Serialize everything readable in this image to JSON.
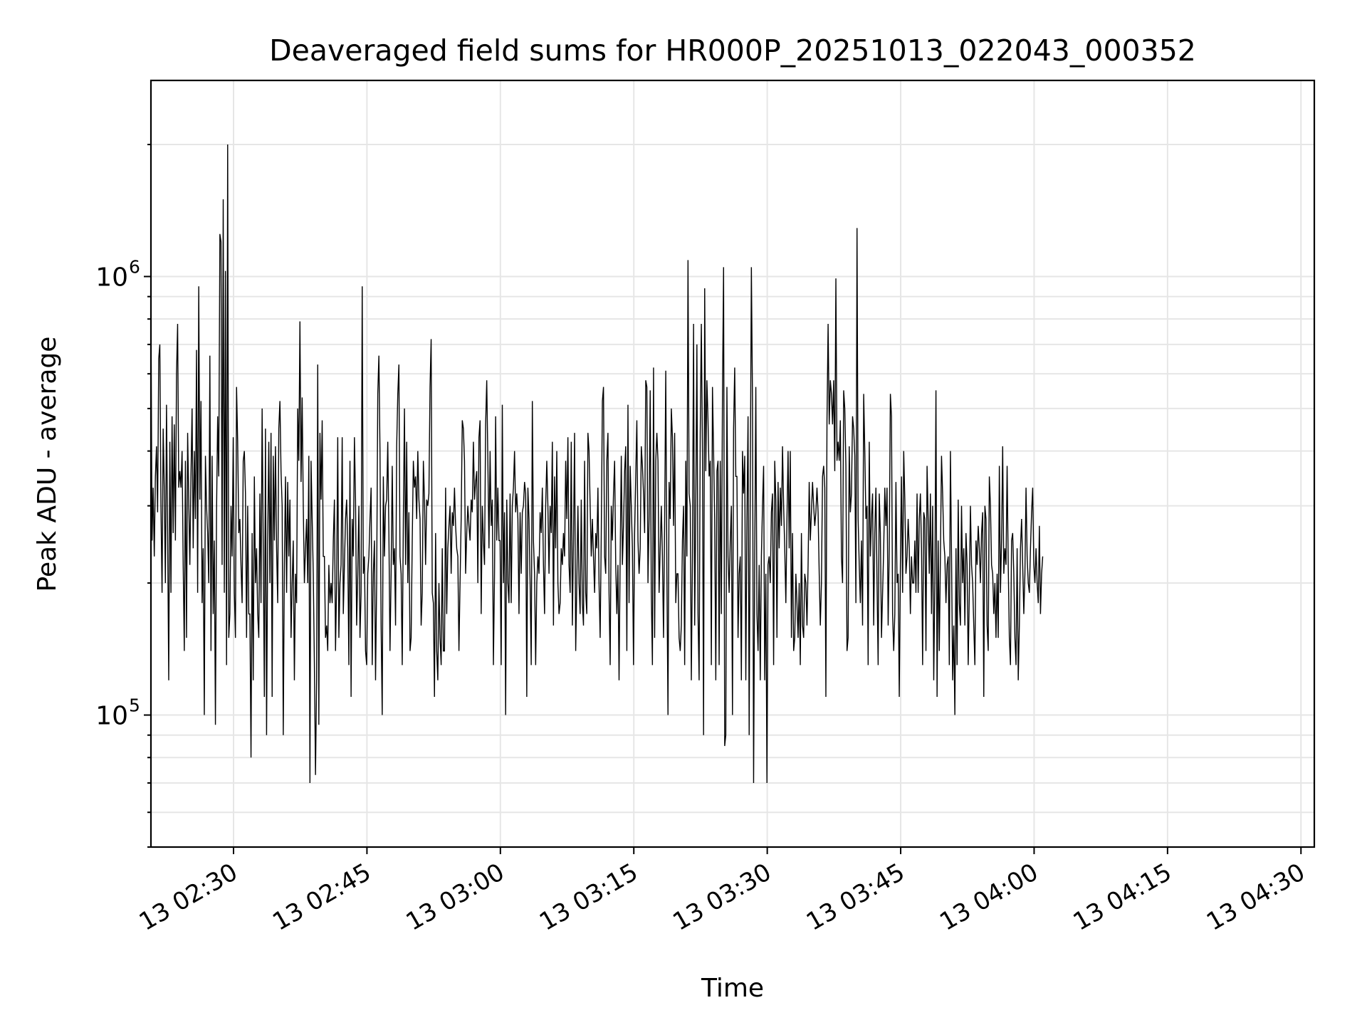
{
  "chart_data": {
    "type": "line",
    "title": "Deaveraged field sums for HR000P_20251013_022043_000352",
    "xlabel": "Time",
    "ylabel": "Peak ADU - average",
    "yscale": "log",
    "ylim": [
      50000,
      2800000
    ],
    "xlim": [
      "2025-10-13 02:20:43",
      "2025-10-13 04:31:30"
    ],
    "x_ticks": [
      "13 02:30",
      "13 02:45",
      "13 03:00",
      "13 03:15",
      "13 03:30",
      "13 03:45",
      "13 04:00",
      "13 04:15",
      "13 04:30"
    ],
    "y_ticks": [
      {
        "label": "10",
        "exponent": "5",
        "value": 100000
      },
      {
        "label": "10",
        "exponent": "6",
        "value": 1000000
      }
    ],
    "grid": true,
    "series": [
      {
        "name": "Peak ADU - average",
        "color": "#000000",
        "x_start": "2025-10-13 02:20:43",
        "x_step_seconds": 7.5,
        "values": [
          820000,
          250000,
          330000,
          230000,
          350000,
          410000,
          290000,
          650000,
          700000,
          300000,
          190000,
          450000,
          330000,
          200000,
          510000,
          260000,
          120000,
          420000,
          190000,
          480000,
          260000,
          460000,
          250000,
          600000,
          780000,
          330000,
          360000,
          330000,
          400000,
          220000,
          140000,
          380000,
          150000,
          440000,
          310000,
          220000,
          350000,
          500000,
          240000,
          400000,
          280000,
          680000,
          190000,
          950000,
          310000,
          520000,
          180000,
          240000,
          100000,
          390000,
          300000,
          260000,
          200000,
          660000,
          140000,
          390000,
          170000,
          250000,
          95000,
          290000,
          480000,
          350000,
          1250000,
          1200000,
          220000,
          1500000,
          190000,
          1030000,
          130000,
          2000000,
          150000,
          170000,
          300000,
          230000,
          430000,
          190000,
          150000,
          560000,
          420000,
          260000,
          280000,
          220000,
          180000,
          380000,
          400000,
          320000,
          150000,
          300000,
          170000,
          170000,
          80000,
          260000,
          120000,
          350000,
          200000,
          240000,
          170000,
          150000,
          320000,
          180000,
          500000,
          240000,
          110000,
          450000,
          90000,
          250000,
          420000,
          200000,
          440000,
          110000,
          390000,
          250000,
          410000,
          240000,
          180000,
          450000,
          520000,
          360000,
          300000,
          90000,
          220000,
          350000,
          190000,
          340000,
          230000,
          310000,
          150000,
          200000,
          250000,
          120000,
          210000,
          180000,
          500000,
          380000,
          790000,
          340000,
          530000,
          300000,
          200000,
          240000,
          280000,
          200000,
          390000,
          70000,
          380000,
          280000,
          210000,
          130000,
          73000,
          120000,
          630000,
          95000,
          440000,
          310000,
          470000,
          230000,
          230000,
          150000,
          160000,
          140000,
          220000,
          180000,
          200000,
          180000,
          250000,
          310000,
          140000,
          200000,
          430000,
          150000,
          200000,
          220000,
          430000,
          170000,
          220000,
          280000,
          310000,
          240000,
          130000,
          380000,
          110000,
          280000,
          230000,
          430000,
          310000,
          160000,
          210000,
          300000,
          150000,
          190000,
          950000,
          210000,
          230000,
          140000,
          130000,
          210000,
          230000,
          280000,
          330000,
          130000,
          210000,
          250000,
          120000,
          200000,
          540000,
          660000,
          400000,
          160000,
          100000,
          350000,
          230000,
          300000,
          310000,
          420000,
          260000,
          140000,
          210000,
          370000,
          220000,
          240000,
          160000,
          410000,
          540000,
          630000,
          230000,
          210000,
          130000,
          280000,
          500000,
          220000,
          420000,
          200000,
          290000,
          140000,
          150000,
          250000,
          380000,
          330000,
          350000,
          280000,
          400000,
          310000,
          280000,
          160000,
          190000,
          380000,
          310000,
          220000,
          310000,
          300000,
          320000,
          560000,
          720000,
          190000,
          180000,
          110000,
          260000,
          140000,
          120000,
          200000,
          150000,
          130000,
          240000,
          140000,
          140000,
          330000,
          170000,
          240000,
          270000,
          300000,
          210000,
          290000,
          270000,
          330000,
          270000,
          240000,
          230000,
          140000,
          200000,
          280000,
          470000,
          450000,
          380000,
          210000,
          260000,
          300000,
          270000,
          250000,
          310000,
          290000,
          420000,
          310000,
          340000,
          360000,
          200000,
          430000,
          470000,
          170000,
          300000,
          250000,
          220000,
          460000,
          580000,
          380000,
          240000,
          400000,
          270000,
          310000,
          130000,
          210000,
          480000,
          250000,
          330000,
          250000,
          250000,
          130000,
          510000,
          200000,
          290000,
          100000,
          310000,
          200000,
          180000,
          320000,
          180000,
          300000,
          330000,
          400000,
          290000,
          320000,
          280000,
          170000,
          290000,
          210000,
          290000,
          300000,
          340000,
          320000,
          110000,
          330000,
          280000,
          200000,
          130000,
          520000,
          250000,
          210000,
          130000,
          200000,
          230000,
          210000,
          290000,
          260000,
          330000,
          220000,
          170000,
          300000,
          380000,
          300000,
          210000,
          300000,
          260000,
          420000,
          160000,
          350000,
          240000,
          400000,
          200000,
          170000,
          180000,
          240000,
          220000,
          260000,
          230000,
          380000,
          280000,
          430000,
          220000,
          190000,
          420000,
          160000,
          250000,
          440000,
          140000,
          200000,
          300000,
          200000,
          170000,
          310000,
          180000,
          160000,
          380000,
          190000,
          170000,
          440000,
          400000,
          300000,
          230000,
          280000,
          230000,
          190000,
          260000,
          240000,
          330000,
          200000,
          150000,
          260000,
          520000,
          560000,
          230000,
          210000,
          380000,
          440000,
          190000,
          130000,
          300000,
          250000,
          320000,
          380000,
          220000,
          170000,
          220000,
          120000,
          230000,
          390000,
          220000,
          270000,
          360000,
          410000,
          140000,
          510000,
          180000,
          370000,
          300000,
          240000,
          130000,
          260000,
          350000,
          470000,
          250000,
          210000,
          240000,
          410000,
          370000,
          320000,
          260000,
          580000,
          560000,
          200000,
          280000,
          550000,
          190000,
          130000,
          620000,
          150000,
          380000,
          440000,
          380000,
          190000,
          240000,
          300000,
          230000,
          150000,
          280000,
          610000,
          210000,
          100000,
          340000,
          280000,
          500000,
          430000,
          270000,
          440000,
          180000,
          210000,
          210000,
          150000,
          140000,
          160000,
          250000,
          300000,
          130000,
          380000,
          230000,
          1090000,
          320000,
          300000,
          120000,
          230000,
          780000,
          160000,
          300000,
          700000,
          170000,
          120000,
          440000,
          780000,
          400000,
          90000,
          940000,
          360000,
          580000,
          470000,
          350000,
          380000,
          130000,
          560000,
          400000,
          280000,
          120000,
          360000,
          380000,
          130000,
          380000,
          170000,
          540000,
          1050000,
          85000,
          90000,
          560000,
          230000,
          190000,
          250000,
          300000,
          100000,
          450000,
          620000,
          350000,
          350000,
          150000,
          210000,
          230000,
          120000,
          400000,
          320000,
          390000,
          120000,
          280000,
          480000,
          90000,
          330000,
          1050000,
          520000,
          70000,
          230000,
          560000,
          170000,
          140000,
          220000,
          120000,
          230000,
          300000,
          370000,
          120000,
          210000,
          70000,
          220000,
          230000,
          200000,
          290000,
          320000,
          130000,
          380000,
          310000,
          150000,
          340000,
          240000,
          330000,
          270000,
          410000,
          300000,
          240000,
          180000,
          280000,
          400000,
          240000,
          400000,
          150000,
          260000,
          140000,
          150000,
          210000,
          180000,
          150000,
          200000,
          130000,
          260000,
          160000,
          150000,
          210000,
          200000,
          160000,
          220000,
          340000,
          250000,
          290000,
          340000,
          300000,
          270000,
          290000,
          330000,
          290000,
          210000,
          160000,
          200000,
          350000,
          370000,
          330000,
          110000,
          470000,
          780000,
          460000,
          580000,
          540000,
          460000,
          580000,
          360000,
          990000,
          380000,
          420000,
          380000,
          470000,
          230000,
          200000,
          550000,
          500000,
          370000,
          140000,
          150000,
          410000,
          290000,
          320000,
          480000,
          450000,
          390000,
          180000,
          1290000,
          280000,
          220000,
          180000,
          250000,
          160000,
          540000,
          400000,
          280000,
          300000,
          130000,
          420000,
          230000,
          280000,
          320000,
          160000,
          260000,
          330000,
          200000,
          130000,
          320000,
          260000,
          150000,
          190000,
          240000,
          330000,
          270000,
          330000,
          160000,
          240000,
          540000,
          480000,
          170000,
          140000,
          170000,
          340000,
          200000,
          210000,
          110000,
          220000,
          350000,
          190000,
          400000,
          310000,
          210000,
          230000,
          280000,
          240000,
          170000,
          230000,
          200000,
          200000,
          250000,
          190000,
          320000,
          190000,
          280000,
          320000,
          240000,
          130000,
          290000,
          280000,
          140000,
          370000,
          280000,
          210000,
          320000,
          170000,
          300000,
          120000,
          200000,
          550000,
          110000,
          250000,
          140000,
          230000,
          390000,
          320000,
          250000,
          230000,
          180000,
          220000,
          230000,
          130000,
          400000,
          230000,
          120000,
          160000,
          100000,
          240000,
          130000,
          310000,
          180000,
          160000,
          300000,
          200000,
          240000,
          160000,
          260000,
          220000,
          130000,
          190000,
          300000,
          220000,
          200000,
          160000,
          130000,
          250000,
          220000,
          270000,
          240000,
          200000,
          260000,
          290000,
          110000,
          300000,
          280000,
          160000,
          140000,
          350000,
          300000,
          220000,
          210000,
          170000,
          200000,
          150000,
          210000,
          150000,
          370000,
          190000,
          250000,
          410000,
          210000,
          240000,
          220000,
          370000,
          220000,
          150000,
          130000,
          250000,
          260000,
          210000,
          150000,
          130000,
          240000,
          120000,
          160000,
          240000,
          280000,
          220000,
          170000,
          210000,
          330000,
          230000,
          200000,
          190000,
          240000,
          290000,
          330000,
          220000,
          200000,
          240000,
          200000,
          180000,
          270000,
          170000,
          210000,
          230000
        ]
      }
    ]
  }
}
